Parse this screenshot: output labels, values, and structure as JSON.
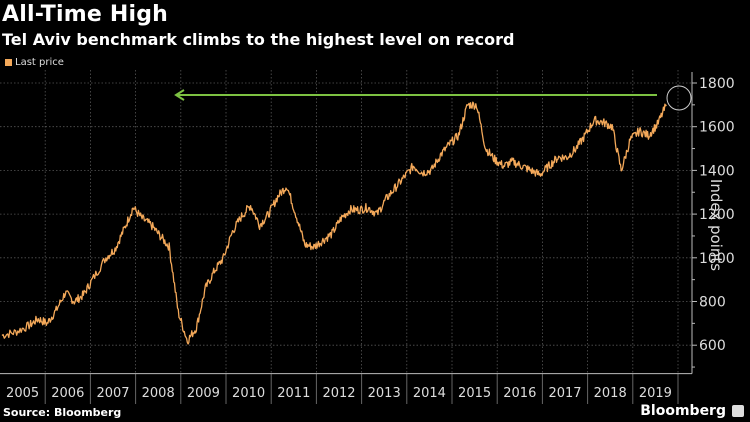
{
  "header": {
    "title": "All-Time High",
    "subtitle": "Tel Aviv benchmark climbs to the highest level on record"
  },
  "legend": {
    "label": "Last price",
    "color": "#F4A95A"
  },
  "footer": {
    "source": "Source: Bloomberg",
    "brand": "Bloomberg"
  },
  "colors": {
    "line": "#F4A95A",
    "arrow": "#7DC242",
    "grid": "#555555",
    "axis": "#BBBBBB",
    "circle": "#CCCCCC"
  },
  "chart_data": {
    "type": "line",
    "title": "All-Time High",
    "subtitle": "Tel Aviv benchmark climbs to the highest level on record",
    "xlabel": "",
    "ylabel": "Index points",
    "ylim": [
      500,
      1850
    ],
    "yticks": [
      600,
      800,
      1000,
      1200,
      1400,
      1600,
      1800
    ],
    "xticks": [
      "2005",
      "2006",
      "2007",
      "2008",
      "2009",
      "2010",
      "2011",
      "2012",
      "2013",
      "2014",
      "2015",
      "2016",
      "2017",
      "2018",
      "2019"
    ],
    "grid": true,
    "legend_position": "top-left",
    "series": [
      {
        "name": "Last price",
        "x": [
          2005.0,
          2005.3,
          2005.6,
          2005.8,
          2006.0,
          2006.2,
          2006.4,
          2006.6,
          2006.8,
          2007.0,
          2007.3,
          2007.5,
          2007.7,
          2007.9,
          2008.1,
          2008.3,
          2008.5,
          2008.7,
          2008.9,
          2009.1,
          2009.3,
          2009.5,
          2009.7,
          2009.9,
          2010.1,
          2010.3,
          2010.5,
          2010.7,
          2010.9,
          2011.1,
          2011.3,
          2011.5,
          2011.7,
          2011.9,
          2012.1,
          2012.3,
          2012.5,
          2012.7,
          2012.9,
          2013.1,
          2013.3,
          2013.5,
          2013.7,
          2013.9,
          2014.1,
          2014.3,
          2014.5,
          2014.7,
          2014.9,
          2015.1,
          2015.3,
          2015.5,
          2015.7,
          2015.9,
          2016.1,
          2016.3,
          2016.5,
          2016.7,
          2016.9,
          2017.1,
          2017.3,
          2017.5,
          2017.7,
          2017.9,
          2018.1,
          2018.3,
          2018.5,
          2018.7,
          2018.9,
          2019.1,
          2019.3,
          2019.5,
          2019.7
        ],
        "values": [
          645,
          660,
          690,
          720,
          700,
          760,
          840,
          800,
          830,
          900,
          1000,
          1040,
          1130,
          1230,
          1180,
          1150,
          1100,
          1050,
          750,
          620,
          680,
          860,
          940,
          1000,
          1120,
          1190,
          1240,
          1150,
          1200,
          1280,
          1330,
          1200,
          1060,
          1050,
          1080,
          1110,
          1180,
          1220,
          1220,
          1230,
          1200,
          1270,
          1320,
          1370,
          1420,
          1390,
          1400,
          1470,
          1520,
          1560,
          1700,
          1700,
          1500,
          1450,
          1420,
          1440,
          1420,
          1400,
          1380,
          1420,
          1460,
          1460,
          1500,
          1560,
          1630,
          1620,
          1600,
          1400,
          1540,
          1580,
          1560,
          1610,
          1700
        ]
      }
    ],
    "annotations": [
      {
        "type": "arrow",
        "direction": "left",
        "at_value": 1745,
        "from_year": 2019.7,
        "to_year": 2008.6,
        "color": "#7DC242"
      },
      {
        "type": "circle",
        "around": "latest value ~1700 (2019)"
      }
    ]
  }
}
